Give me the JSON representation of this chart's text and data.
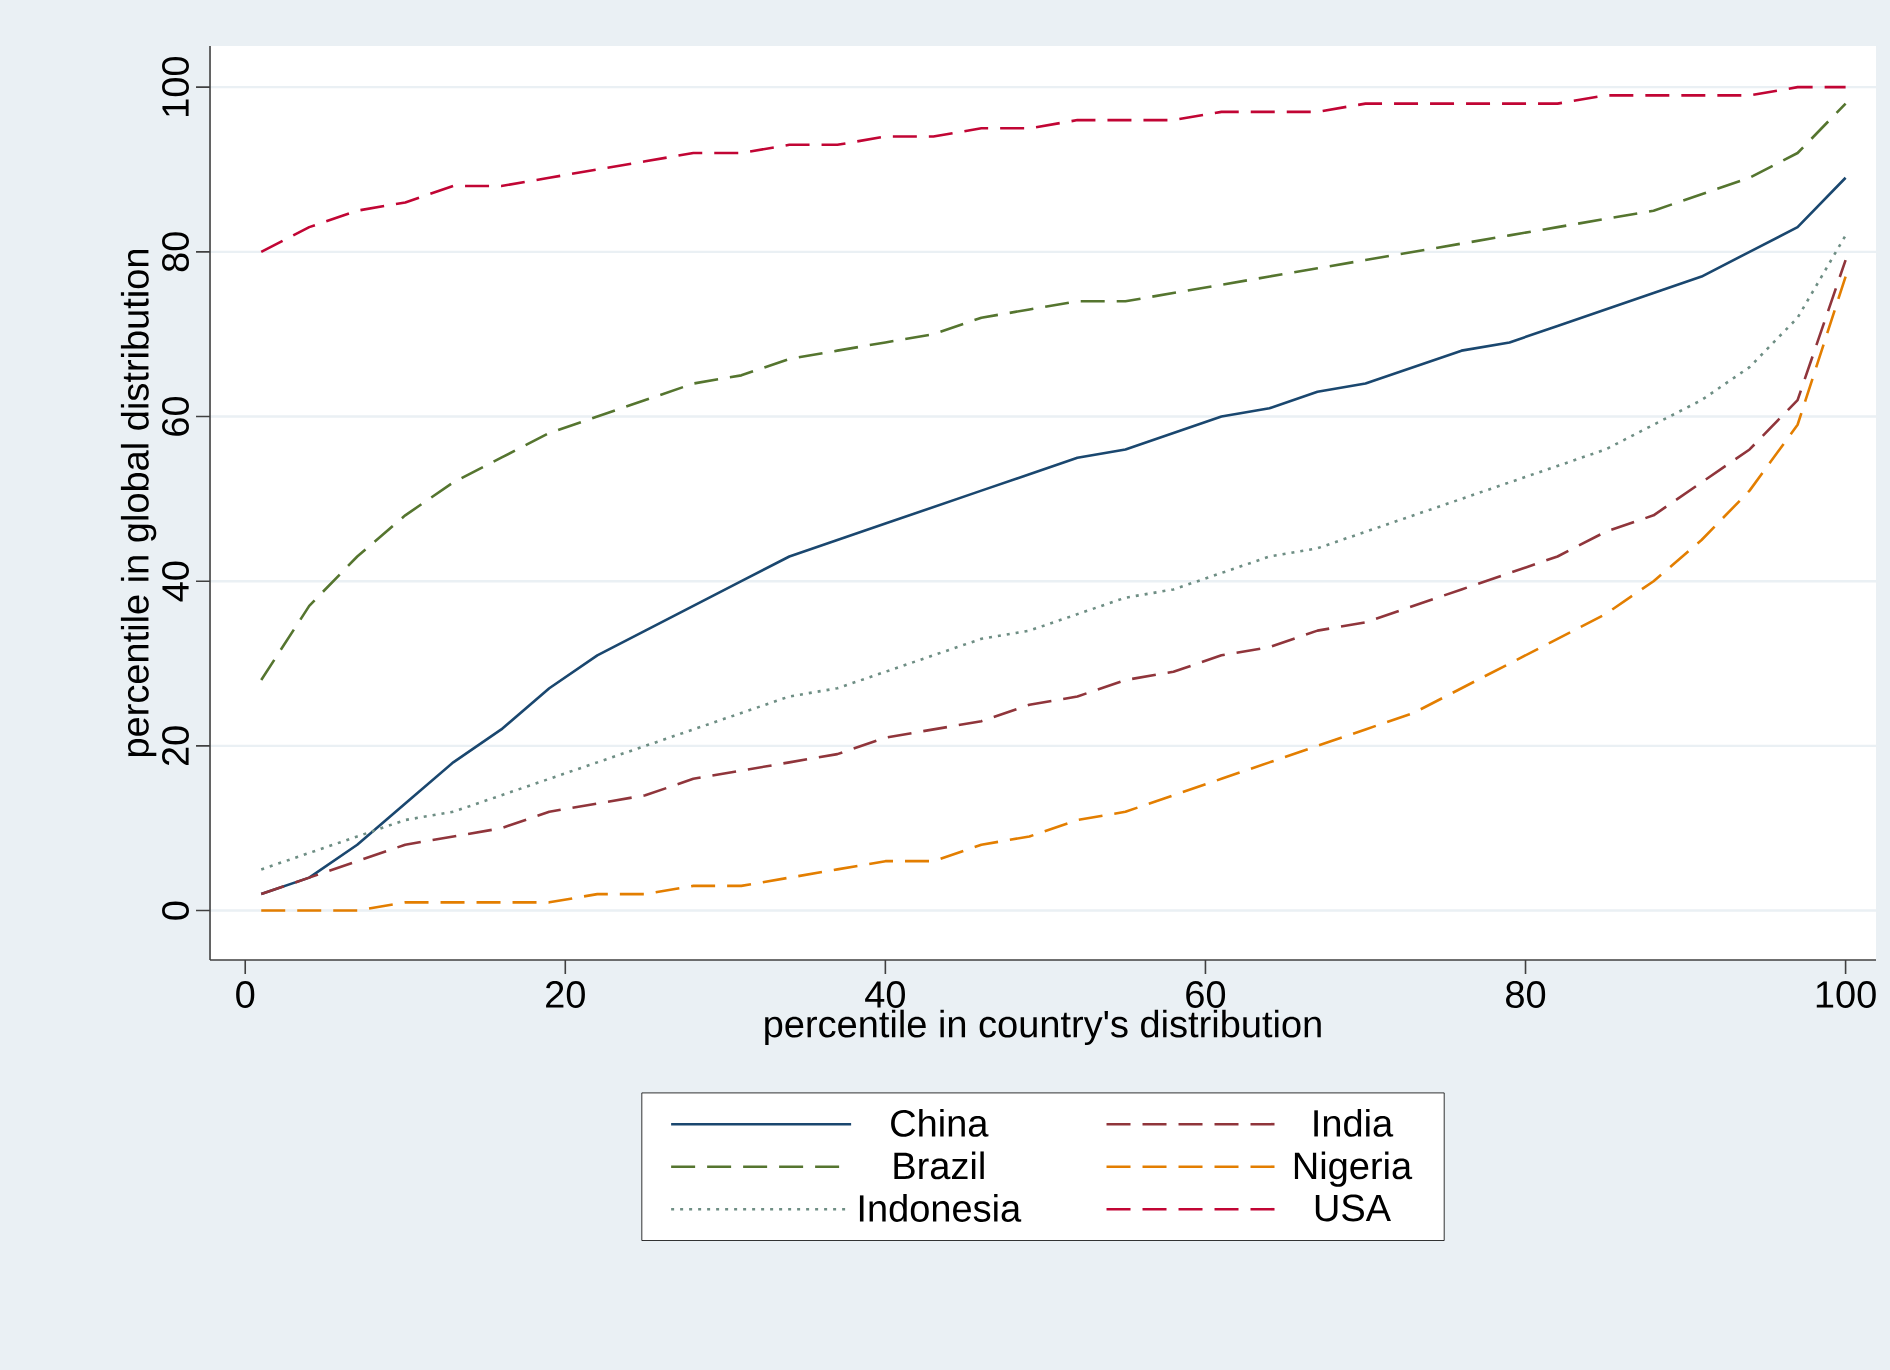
{
  "chart_data": {
    "type": "line",
    "xlabel": "percentile in country's distribution",
    "ylabel": "percentile in global distribution",
    "x": [
      1,
      4,
      7,
      10,
      13,
      16,
      19,
      22,
      25,
      28,
      31,
      34,
      37,
      40,
      43,
      46,
      49,
      52,
      55,
      58,
      61,
      64,
      67,
      70,
      73,
      76,
      79,
      82,
      85,
      88,
      91,
      94,
      97,
      100
    ],
    "series": [
      {
        "name": "China",
        "color": "#1a476f",
        "line_style": "solid",
        "values": [
          2,
          4,
          8,
          13,
          18,
          22,
          27,
          31,
          34,
          37,
          40,
          43,
          45,
          47,
          49,
          51,
          53,
          55,
          56,
          58,
          60,
          61,
          63,
          64,
          66,
          68,
          69,
          71,
          73,
          75,
          77,
          80,
          83,
          89
        ]
      },
      {
        "name": "Brazil",
        "color": "#55752f",
        "line_style": "dashed",
        "values": [
          28,
          37,
          43,
          48,
          52,
          55,
          58,
          60,
          62,
          64,
          65,
          67,
          68,
          69,
          70,
          72,
          73,
          74,
          74,
          75,
          76,
          77,
          78,
          79,
          80,
          81,
          82,
          83,
          84,
          85,
          87,
          89,
          92,
          98
        ]
      },
      {
        "name": "Indonesia",
        "color": "#6e8e84",
        "line_style": "dotted",
        "values": [
          5,
          7,
          9,
          11,
          12,
          14,
          16,
          18,
          20,
          22,
          24,
          26,
          27,
          29,
          31,
          33,
          34,
          36,
          38,
          39,
          41,
          43,
          44,
          46,
          48,
          50,
          52,
          54,
          56,
          59,
          62,
          66,
          72,
          82
        ]
      },
      {
        "name": "India",
        "color": "#90353b",
        "line_style": "dashed",
        "values": [
          2,
          4,
          6,
          8,
          9,
          10,
          12,
          13,
          14,
          16,
          17,
          18,
          19,
          21,
          22,
          23,
          25,
          26,
          28,
          29,
          31,
          32,
          34,
          35,
          37,
          39,
          41,
          43,
          46,
          48,
          52,
          56,
          62,
          79
        ]
      },
      {
        "name": "Nigeria",
        "color": "#e37e00",
        "line_style": "dashed",
        "values": [
          0,
          0,
          0,
          1,
          1,
          1,
          1,
          2,
          2,
          3,
          3,
          4,
          5,
          6,
          6,
          8,
          9,
          11,
          12,
          14,
          16,
          18,
          20,
          22,
          24,
          27,
          30,
          33,
          36,
          40,
          45,
          51,
          59,
          77
        ]
      },
      {
        "name": "USA",
        "color": "#c10534",
        "line_style": "dashed",
        "values": [
          80,
          83,
          85,
          86,
          88,
          88,
          89,
          90,
          91,
          92,
          92,
          93,
          93,
          94,
          94,
          95,
          95,
          96,
          96,
          96,
          97,
          97,
          97,
          98,
          98,
          98,
          98,
          98,
          99,
          99,
          99,
          99,
          100,
          100
        ]
      }
    ],
    "xlim": [
      -2.2,
      101.9
    ],
    "ylim": [
      -6,
      105
    ],
    "xticks": [
      0,
      20,
      40,
      60,
      80,
      100
    ],
    "yticks": [
      0,
      20,
      40,
      60,
      80,
      100
    ],
    "grid": "y",
    "legend": "bottom"
  }
}
